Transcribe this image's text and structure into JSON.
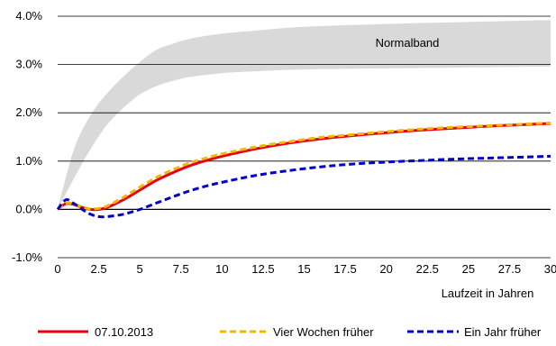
{
  "chart_data": {
    "type": "line",
    "title": "",
    "xlabel": "Laufzeit in Jahren",
    "ylabel": "",
    "xlim": [
      0,
      30
    ],
    "ylim": [
      -1.0,
      4.0
    ],
    "x_ticks": [
      0,
      2.5,
      5,
      7.5,
      10,
      12.5,
      15,
      17.5,
      20,
      22.5,
      25,
      27.5,
      30
    ],
    "x_tick_labels": [
      "0",
      "2.5",
      "5",
      "7.5",
      "10",
      "12.5",
      "15",
      "17.5",
      "20",
      "22.5",
      "25",
      "27.5",
      "30"
    ],
    "y_ticks": [
      -1.0,
      0.0,
      1.0,
      2.0,
      3.0,
      4.0
    ],
    "y_tick_labels": [
      "-1.0%",
      "0.0%",
      "1.0%",
      "2.0%",
      "3.0%",
      "4.0%"
    ],
    "grid": "horizontal",
    "legend_position": "bottom",
    "band": {
      "label": "Normalband",
      "color": "#d9d9d9",
      "x": [
        0,
        1,
        2,
        3,
        4,
        5,
        6,
        7,
        8,
        10,
        12,
        15,
        20,
        25,
        30
      ],
      "lower": [
        0.0,
        0.65,
        1.25,
        1.75,
        2.1,
        2.38,
        2.55,
        2.66,
        2.74,
        2.82,
        2.86,
        2.9,
        2.92,
        2.94,
        2.96
      ],
      "upper": [
        0.0,
        1.25,
        1.95,
        2.4,
        2.75,
        3.05,
        3.3,
        3.43,
        3.53,
        3.64,
        3.7,
        3.78,
        3.84,
        3.88,
        3.92
      ]
    },
    "series": [
      {
        "name": "07.10.2013",
        "color": "#e8000b",
        "dash": "solid",
        "x": [
          0,
          0.5,
          1,
          1.5,
          2,
          2.5,
          3,
          4,
          5,
          6,
          7,
          8,
          9,
          10,
          12,
          14,
          16,
          18,
          20,
          22,
          24,
          26,
          28,
          30
        ],
        "values": [
          0.0,
          0.12,
          0.1,
          0.04,
          0.0,
          0.0,
          0.04,
          0.2,
          0.4,
          0.6,
          0.76,
          0.9,
          1.01,
          1.1,
          1.25,
          1.37,
          1.46,
          1.53,
          1.59,
          1.64,
          1.68,
          1.72,
          1.75,
          1.78
        ]
      },
      {
        "name": "Vier Wochen früher",
        "color": "#f2b800",
        "dash": "dashed",
        "x": [
          0,
          0.5,
          1,
          1.5,
          2,
          2.5,
          3,
          4,
          5,
          6,
          7,
          8,
          9,
          10,
          12,
          14,
          16,
          18,
          20,
          22,
          24,
          26,
          28,
          30
        ],
        "values": [
          0.0,
          0.13,
          0.11,
          0.05,
          0.01,
          0.02,
          0.07,
          0.25,
          0.46,
          0.66,
          0.82,
          0.96,
          1.06,
          1.15,
          1.29,
          1.4,
          1.49,
          1.55,
          1.61,
          1.66,
          1.7,
          1.73,
          1.76,
          1.79
        ]
      },
      {
        "name": "Ein Jahr früher",
        "color": "#0000c8",
        "dash": "dashed",
        "x": [
          0,
          0.5,
          1,
          1.5,
          2,
          2.5,
          3,
          4,
          5,
          6,
          7,
          8,
          9,
          10,
          12,
          14,
          16,
          18,
          20,
          22,
          24,
          26,
          28,
          30
        ],
        "values": [
          0.0,
          0.2,
          0.12,
          0.0,
          -0.1,
          -0.15,
          -0.15,
          -0.1,
          0.0,
          0.13,
          0.26,
          0.38,
          0.48,
          0.56,
          0.7,
          0.8,
          0.88,
          0.94,
          0.98,
          1.01,
          1.04,
          1.06,
          1.08,
          1.1
        ]
      }
    ]
  }
}
